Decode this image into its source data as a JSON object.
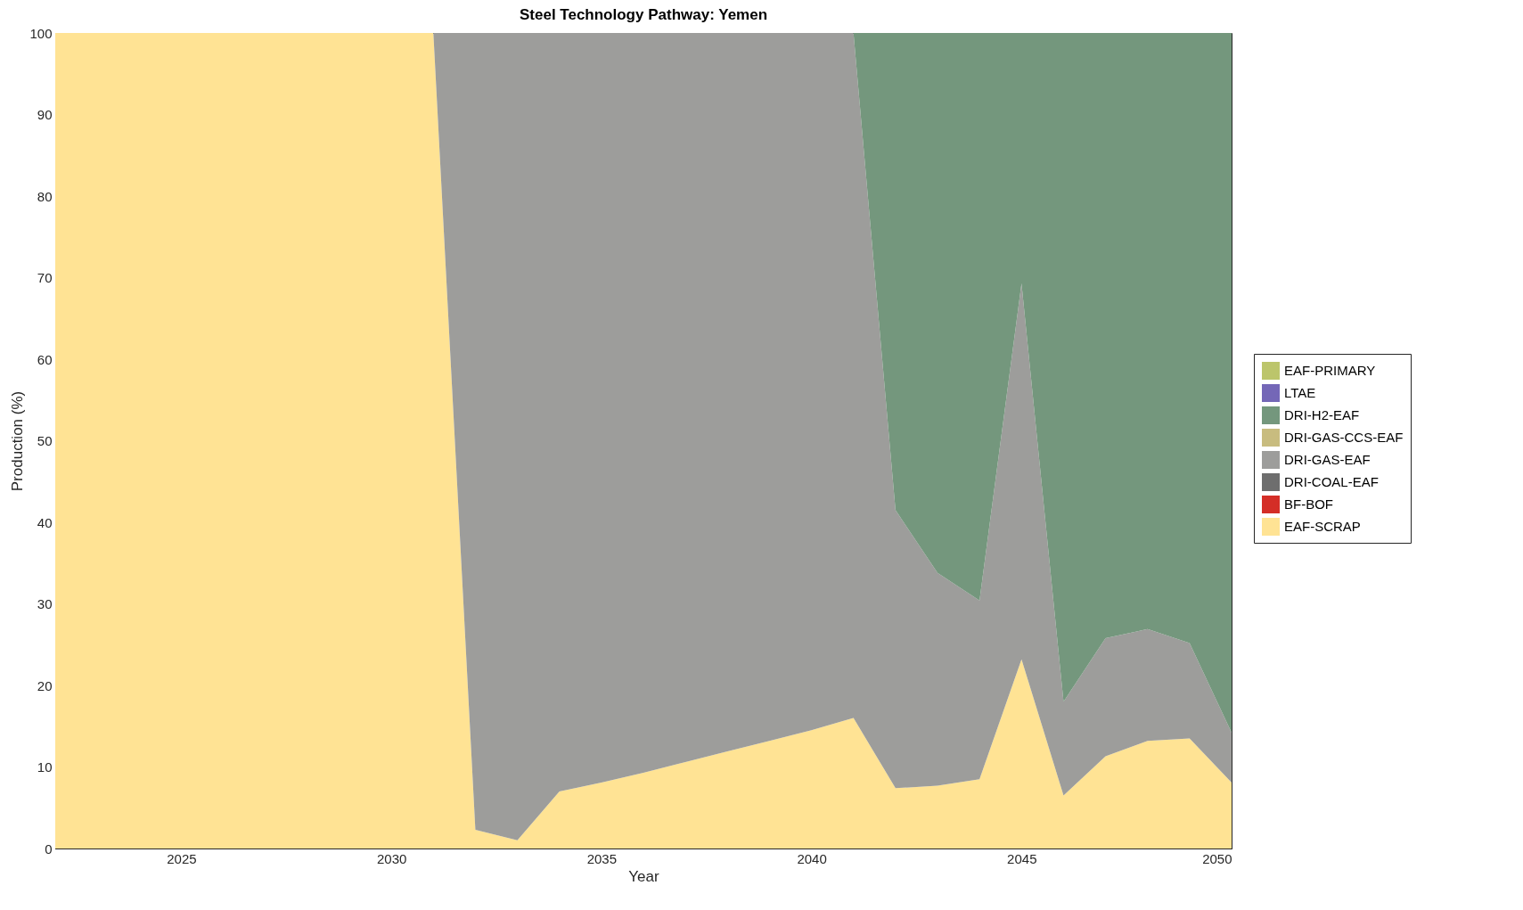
{
  "chart_data": {
    "type": "area",
    "title": "Steel Technology Pathway: Yemen",
    "xlabel": "Year",
    "ylabel": "Production (%)",
    "stacked": true,
    "legend": "right",
    "grid": false,
    "x": [
      2022,
      2023,
      2024,
      2025,
      2026,
      2027,
      2028,
      2029,
      2030,
      2031,
      2032,
      2033,
      2034,
      2035,
      2036,
      2037,
      2038,
      2039,
      2040,
      2041,
      2042,
      2043,
      2044,
      2045,
      2046,
      2047,
      2048,
      2049,
      2050
    ],
    "xlim": [
      2022,
      2050
    ],
    "xticks": [
      2025,
      2030,
      2035,
      2040,
      2045,
      2050
    ],
    "ylim": [
      0,
      100
    ],
    "yticks": [
      0,
      10,
      20,
      30,
      40,
      50,
      60,
      70,
      80,
      90,
      100
    ],
    "series": [
      {
        "name": "EAF-SCRAP",
        "color": "#ffe394",
        "values": [
          100,
          100,
          100,
          100,
          100,
          100,
          100,
          100,
          100,
          100,
          2.3,
          1.0,
          7,
          8.1,
          9.3,
          10.6,
          11.9,
          13.2,
          14.5,
          16,
          7.4,
          7.7,
          8.5,
          23.2,
          6.5,
          11.3,
          13.2,
          13.5,
          8.1
        ]
      },
      {
        "name": "BF-BOF",
        "color": "#d42e27",
        "values": [
          null,
          null,
          null,
          null,
          null,
          null,
          null,
          null,
          null,
          null,
          null,
          null,
          null,
          null,
          null,
          null,
          null,
          null,
          null,
          null,
          null,
          null,
          null,
          null,
          null,
          null,
          null,
          null,
          null
        ]
      },
      {
        "name": "DRI-COAL-EAF",
        "color": "#6e6e6e",
        "values": [
          null,
          null,
          null,
          null,
          null,
          null,
          null,
          null,
          null,
          null,
          null,
          null,
          null,
          null,
          null,
          null,
          null,
          null,
          null,
          null,
          null,
          null,
          null,
          null,
          null,
          null,
          null,
          null,
          null
        ]
      },
      {
        "name": "DRI-GAS-EAF",
        "color": "#9d9d9b",
        "values": [
          0,
          0,
          0,
          0,
          0,
          0,
          0,
          0,
          0,
          0,
          97.7,
          99.0,
          93,
          91.9,
          90.7,
          89.4,
          88.1,
          86.8,
          85.5,
          84,
          34.1,
          26.1,
          21.9,
          46.1,
          11.5,
          14.5,
          13.7,
          11.7,
          6.1
        ]
      },
      {
        "name": "DRI-GAS-CCS-EAF",
        "color": "#c8bc7f",
        "values": [
          null,
          null,
          null,
          null,
          null,
          null,
          null,
          null,
          null,
          null,
          null,
          null,
          null,
          null,
          null,
          null,
          null,
          null,
          null,
          null,
          null,
          null,
          null,
          null,
          null,
          null,
          null,
          null,
          null
        ]
      },
      {
        "name": "DRI-H2-EAF",
        "color": "#74977d",
        "values": [
          0,
          0,
          0,
          0,
          0,
          0,
          0,
          0,
          0,
          0,
          0,
          0,
          0,
          0,
          0,
          0,
          0,
          0,
          0,
          0,
          58.5,
          66.2,
          69.6,
          30.7,
          82,
          74.2,
          73.1,
          74.8,
          85.8
        ]
      },
      {
        "name": "LTAE",
        "color": "#7467b7",
        "values": [
          null,
          null,
          null,
          null,
          null,
          null,
          null,
          null,
          null,
          null,
          null,
          null,
          null,
          null,
          null,
          null,
          null,
          null,
          null,
          null,
          null,
          null,
          null,
          null,
          null,
          null,
          null,
          null,
          null
        ]
      },
      {
        "name": "EAF-PRIMARY",
        "color": "#bcc56b",
        "values": [
          null,
          null,
          null,
          null,
          null,
          null,
          null,
          null,
          null,
          null,
          null,
          null,
          null,
          null,
          null,
          null,
          null,
          null,
          null,
          null,
          null,
          null,
          null,
          null,
          null,
          null,
          null,
          null,
          null
        ]
      }
    ]
  }
}
